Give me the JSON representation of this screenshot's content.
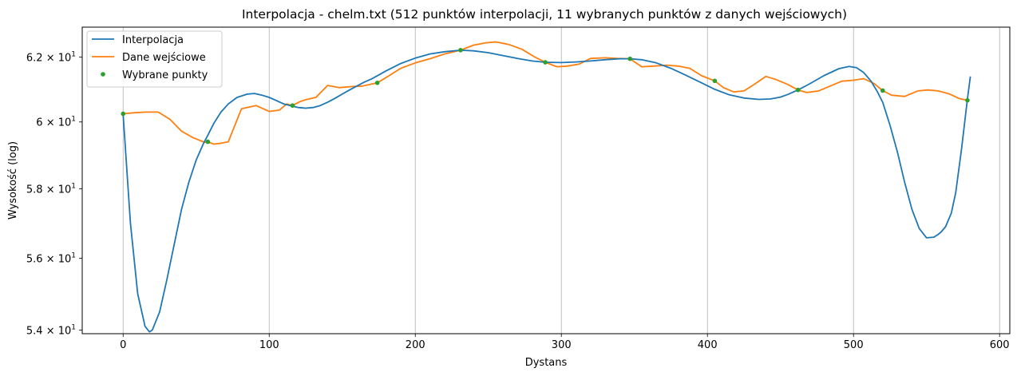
{
  "chart_data": {
    "type": "line",
    "title": "Interpolacja - chelm.txt (512 punktów interpolacji, 11 wybranych punktów z danych wejściowych)",
    "xlabel": "Dystans",
    "ylabel": "Wysokość (log)",
    "xlim": [
      -28,
      607
    ],
    "ylim": [
      53.9,
      62.95
    ],
    "yscale": "log",
    "grid": "x-major",
    "legend_position": "top-left",
    "x_ticks": [
      0,
      100,
      200,
      300,
      400,
      500,
      600
    ],
    "x_tick_labels": [
      "0",
      "100",
      "200",
      "300",
      "400",
      "500",
      "600"
    ],
    "y_ticks": [
      54,
      56,
      58,
      60,
      62
    ],
    "y_tick_labels": [
      {
        "mantissa": "5.4",
        "exp": "1"
      },
      {
        "mantissa": "5.6",
        "exp": "1"
      },
      {
        "mantissa": "5.8",
        "exp": "1"
      },
      {
        "mantissa": "6",
        "exp": "1"
      },
      {
        "mantissa": "6.2",
        "exp": "1"
      }
    ],
    "series": [
      {
        "name": "Interpolacja",
        "color": "#1f77b4",
        "style": "line",
        "x": [
          0,
          5,
          10,
          15,
          18,
          20,
          25,
          30,
          35,
          40,
          45,
          50,
          55,
          58,
          62,
          67,
          72,
          78,
          85,
          90,
          95,
          100,
          105,
          110,
          116,
          120,
          125,
          130,
          135,
          140,
          145,
          150,
          155,
          160,
          165,
          170,
          174,
          180,
          190,
          200,
          210,
          220,
          231,
          240,
          250,
          260,
          270,
          280,
          289,
          300,
          310,
          320,
          330,
          340,
          347,
          355,
          365,
          375,
          385,
          395,
          405,
          415,
          425,
          435,
          443,
          450,
          455,
          462,
          470,
          480,
          490,
          497,
          502,
          507,
          512,
          516,
          520,
          525,
          530,
          535,
          540,
          545,
          550,
          555,
          558,
          560,
          563,
          567,
          570,
          574,
          578,
          580
        ],
        "y": [
          60.25,
          57.0,
          55.0,
          54.1,
          53.95,
          54.0,
          54.5,
          55.4,
          56.4,
          57.4,
          58.2,
          58.85,
          59.35,
          59.6,
          59.95,
          60.3,
          60.55,
          60.75,
          60.85,
          60.87,
          60.82,
          60.75,
          60.65,
          60.55,
          60.48,
          60.44,
          60.42,
          60.44,
          60.5,
          60.6,
          60.72,
          60.85,
          60.98,
          61.1,
          61.22,
          61.32,
          61.42,
          61.57,
          61.8,
          61.97,
          62.1,
          62.17,
          62.22,
          62.2,
          62.14,
          62.05,
          61.96,
          61.88,
          61.84,
          61.83,
          61.85,
          61.88,
          61.92,
          61.95,
          61.95,
          61.92,
          61.82,
          61.65,
          61.44,
          61.22,
          61.0,
          60.83,
          60.73,
          60.69,
          60.7,
          60.76,
          60.84,
          60.98,
          61.17,
          61.43,
          61.64,
          61.71,
          61.67,
          61.52,
          61.25,
          60.95,
          60.6,
          59.9,
          59.1,
          58.2,
          57.4,
          56.85,
          56.58,
          56.6,
          56.68,
          56.75,
          56.9,
          57.3,
          57.9,
          59.2,
          60.7,
          61.4
        ]
      },
      {
        "name": "Dane wejściowe",
        "color": "#ff7f0e",
        "style": "line",
        "x": [
          0,
          8,
          16,
          24,
          32,
          40,
          48,
          56,
          58,
          62,
          66,
          72,
          81,
          91,
          100,
          107,
          112,
          116,
          121,
          125,
          132,
          140,
          148,
          155,
          164,
          174,
          182,
          190,
          200,
          210,
          220,
          231,
          240,
          248,
          255,
          264,
          273,
          282,
          289,
          297,
          304,
          312,
          320,
          330,
          338,
          347,
          355,
          363,
          372,
          380,
          388,
          396,
          405,
          411,
          418,
          425,
          432,
          440,
          447,
          455,
          462,
          468,
          476,
          484,
          492,
          500,
          507,
          514,
          520,
          526,
          535,
          544,
          551,
          558,
          566,
          572,
          578
        ],
        "y": [
          60.25,
          60.28,
          60.3,
          60.3,
          60.08,
          59.72,
          59.52,
          59.38,
          59.4,
          59.33,
          59.35,
          59.4,
          60.4,
          60.5,
          60.32,
          60.36,
          60.55,
          60.5,
          60.62,
          60.68,
          60.75,
          61.12,
          61.05,
          61.08,
          61.1,
          61.2,
          61.42,
          61.65,
          61.82,
          61.95,
          62.1,
          62.22,
          62.38,
          62.45,
          62.48,
          62.4,
          62.25,
          62.0,
          61.84,
          61.7,
          61.72,
          61.78,
          61.96,
          61.98,
          61.96,
          61.95,
          61.7,
          61.72,
          61.75,
          61.72,
          61.65,
          61.42,
          61.26,
          61.05,
          60.92,
          60.95,
          61.15,
          61.4,
          61.3,
          61.15,
          60.98,
          60.9,
          60.95,
          61.1,
          61.25,
          61.28,
          61.33,
          61.18,
          60.96,
          60.82,
          60.78,
          60.95,
          60.98,
          60.95,
          60.85,
          60.72,
          60.66
        ]
      },
      {
        "name": "Wybrane punkty",
        "color": "#2ca02c",
        "style": "points",
        "x": [
          0,
          58,
          116,
          174,
          231,
          289,
          347,
          405,
          462,
          520,
          578
        ],
        "y": [
          60.25,
          59.4,
          60.5,
          61.2,
          62.22,
          61.84,
          61.95,
          61.26,
          60.98,
          60.96,
          60.66
        ]
      }
    ]
  }
}
